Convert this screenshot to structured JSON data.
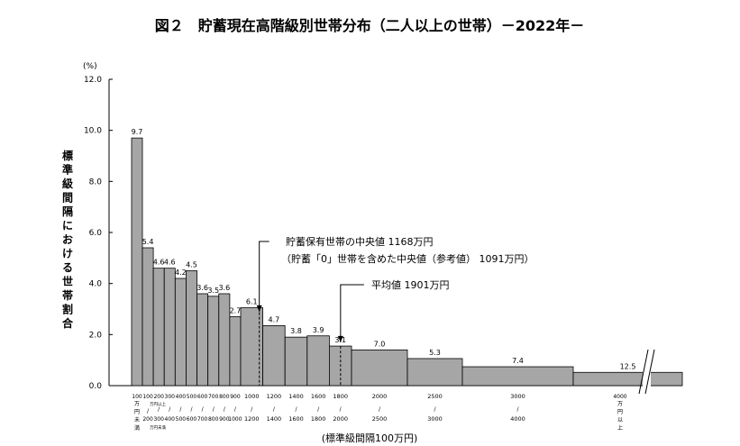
{
  "chart_data": {
    "type": "bar",
    "title": "図２　貯蓄現在高階級別世帯分布（二人以上の世帯）－2022年－",
    "ylabel": "標準級間隔における世帯割合",
    "yunit": "(%)",
    "xlabel": "(標準級間隔100万円)",
    "ylim": [
      0,
      12
    ],
    "yticks": [
      "0.0",
      "2.0",
      "4.0",
      "6.0",
      "8.0",
      "10.0",
      "12.0"
    ],
    "bins": [
      {
        "lo": 0,
        "hi": 100,
        "value": 9.7,
        "label": "9.7"
      },
      {
        "lo": 100,
        "hi": 200,
        "value": 5.4,
        "label": "5.4"
      },
      {
        "lo": 200,
        "hi": 300,
        "value": 4.6,
        "label": "4.6"
      },
      {
        "lo": 300,
        "hi": 400,
        "value": 4.6,
        "label": "4.6"
      },
      {
        "lo": 400,
        "hi": 500,
        "value": 4.2,
        "label": "4.2"
      },
      {
        "lo": 500,
        "hi": 600,
        "value": 4.5,
        "label": "4.5"
      },
      {
        "lo": 600,
        "hi": 700,
        "value": 3.6,
        "label": "3.6"
      },
      {
        "lo": 700,
        "hi": 800,
        "value": 3.5,
        "label": "3.5"
      },
      {
        "lo": 800,
        "hi": 900,
        "value": 3.6,
        "label": "3.6"
      },
      {
        "lo": 900,
        "hi": 1000,
        "value": 2.7,
        "label": "2.7"
      },
      {
        "lo": 1000,
        "hi": 1200,
        "value": 3.05,
        "label": "6.1"
      },
      {
        "lo": 1200,
        "hi": 1400,
        "value": 2.35,
        "label": "4.7"
      },
      {
        "lo": 1400,
        "hi": 1600,
        "value": 1.9,
        "label": "3.8"
      },
      {
        "lo": 1600,
        "hi": 1800,
        "value": 1.95,
        "label": "3.9"
      },
      {
        "lo": 1800,
        "hi": 2000,
        "value": 1.55,
        "label": "3.1"
      },
      {
        "lo": 2000,
        "hi": 2500,
        "value": 1.4,
        "label": "7.0"
      },
      {
        "lo": 2500,
        "hi": 3000,
        "value": 1.06,
        "label": "5.3"
      },
      {
        "lo": 3000,
        "hi": 4000,
        "value": 0.74,
        "label": "7.4"
      },
      {
        "lo": 4000,
        "hi": null,
        "value": 0.52,
        "label": "12.5"
      }
    ],
    "median_line": 1168,
    "mean_line": 1901,
    "annotations": {
      "median": "貯蓄保有世帯の中央値  1168万円",
      "median_ref": "（貯蓄「0」世帯を含めた中央値（参考値）  1091万円）",
      "mean": "平均値  1901万円"
    },
    "xtick_top": [
      "100",
      "100",
      "200",
      "300",
      "400",
      "500",
      "600",
      "700",
      "800",
      "900",
      "1000",
      "1200",
      "1400",
      "1600",
      "1800",
      "2000",
      "2500",
      "3000",
      "4000"
    ],
    "xtick_bottom": [
      "",
      "200",
      "300",
      "400",
      "500",
      "600",
      "700",
      "800",
      "900",
      "1000",
      "1200",
      "1400",
      "1600",
      "1800",
      "2000",
      "2500",
      "3000",
      "4000",
      ""
    ],
    "xtick_first_below": [
      "万",
      "円",
      "未",
      "満"
    ],
    "xtick_second_top": "万円以上",
    "xtick_second_bottom": "万円未満",
    "xtick_last_below": [
      "万",
      "円",
      "以",
      "上"
    ],
    "colors": {
      "bar": "#a6a6a6",
      "edge": "#000000"
    }
  }
}
